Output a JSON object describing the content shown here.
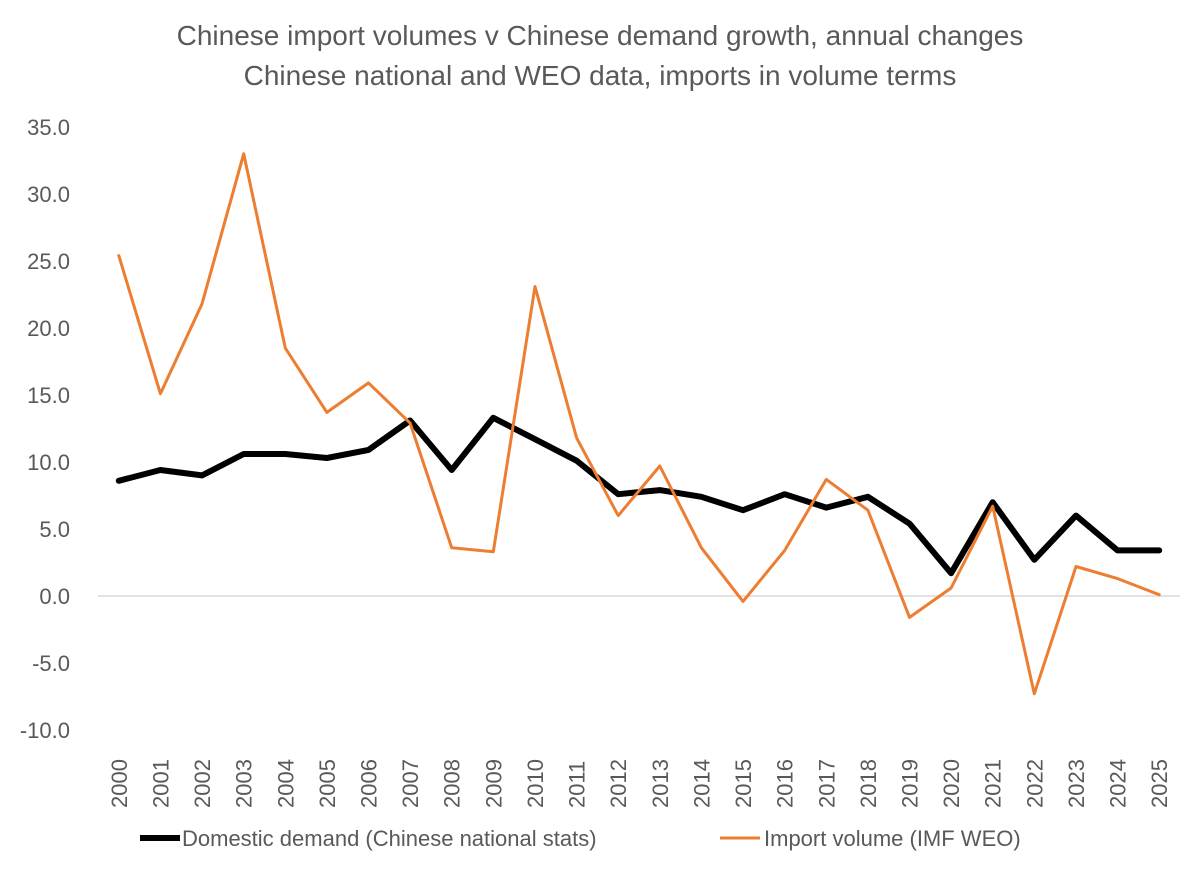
{
  "chart_data": {
    "type": "line",
    "title": "Chinese import volumes v Chinese demand growth, annual changes",
    "subtitle": "Chinese national and WEO data, imports in volume terms",
    "xlabel": "",
    "ylabel": "",
    "ylim": [
      -10,
      35
    ],
    "yticks": [
      "35.0",
      "30.0",
      "25.0",
      "20.0",
      "15.0",
      "10.0",
      "5.0",
      "0.0",
      "-5.0",
      "-10.0"
    ],
    "ytick_values": [
      35,
      30,
      25,
      20,
      15,
      10,
      5,
      0,
      -5,
      -10
    ],
    "grid": false,
    "legend_position": "bottom",
    "categories": [
      "2000",
      "2001",
      "2002",
      "2003",
      "2004",
      "2005",
      "2006",
      "2007",
      "2008",
      "2009",
      "2010",
      "2011",
      "2012",
      "2013",
      "2014",
      "2015",
      "2016",
      "2017",
      "2018",
      "2019",
      "2020",
      "2021",
      "2022",
      "2023",
      "2024",
      "2025"
    ],
    "series": [
      {
        "name": "Domestic demand (Chinese national stats)",
        "color": "#000000",
        "values": [
          8.6,
          9.4,
          9.0,
          10.6,
          10.6,
          10.3,
          10.9,
          13.1,
          9.4,
          13.3,
          11.7,
          10.1,
          7.6,
          7.9,
          7.4,
          6.4,
          7.6,
          6.6,
          7.4,
          5.4,
          1.7,
          7.0,
          2.7,
          6.0,
          3.4,
          3.4
        ]
      },
      {
        "name": "Import volume (IMF WEO)",
        "color": "#ED7D31",
        "values": [
          25.4,
          15.1,
          21.8,
          33.0,
          18.5,
          13.7,
          15.9,
          12.9,
          3.6,
          3.3,
          23.1,
          11.8,
          6.0,
          9.7,
          3.6,
          -0.4,
          3.4,
          8.7,
          6.4,
          -1.6,
          0.6,
          6.7,
          -7.3,
          2.2,
          1.3,
          0.1
        ]
      }
    ]
  }
}
